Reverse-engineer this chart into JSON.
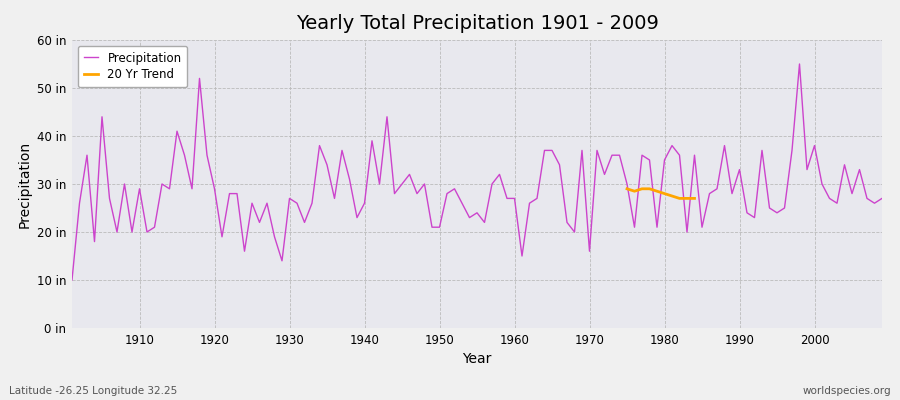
{
  "title": "Yearly Total Precipitation 1901 - 2009",
  "xlabel": "Year",
  "ylabel": "Precipitation",
  "bg_color": "#f0f0f0",
  "plot_bg_color": "#e8e8ee",
  "line_color": "#cc44cc",
  "trend_color": "#ffa500",
  "ylim": [
    0,
    60
  ],
  "ytick_labels": [
    "0 in",
    "10 in",
    "20 in",
    "30 in",
    "40 in",
    "50 in",
    "60 in"
  ],
  "ytick_values": [
    0,
    10,
    20,
    30,
    40,
    50,
    60
  ],
  "footer_left": "Latitude -26.25 Longitude 32.25",
  "footer_right": "worldspecies.org",
  "years": [
    1901,
    1902,
    1903,
    1904,
    1905,
    1906,
    1907,
    1908,
    1909,
    1910,
    1911,
    1912,
    1913,
    1914,
    1915,
    1916,
    1917,
    1918,
    1919,
    1920,
    1921,
    1922,
    1923,
    1924,
    1925,
    1926,
    1927,
    1928,
    1929,
    1930,
    1931,
    1932,
    1933,
    1934,
    1935,
    1936,
    1937,
    1938,
    1939,
    1940,
    1941,
    1942,
    1943,
    1944,
    1945,
    1946,
    1947,
    1948,
    1949,
    1950,
    1951,
    1952,
    1953,
    1954,
    1955,
    1956,
    1957,
    1958,
    1959,
    1960,
    1961,
    1962,
    1963,
    1964,
    1965,
    1966,
    1967,
    1968,
    1969,
    1970,
    1971,
    1972,
    1973,
    1974,
    1975,
    1976,
    1977,
    1978,
    1979,
    1980,
    1981,
    1982,
    1983,
    1984,
    1985,
    1986,
    1987,
    1988,
    1989,
    1990,
    1991,
    1992,
    1993,
    1994,
    1995,
    1996,
    1997,
    1998,
    1999,
    2000,
    2001,
    2002,
    2003,
    2004,
    2005,
    2006,
    2007,
    2008,
    2009
  ],
  "precip": [
    10,
    26,
    36,
    18,
    44,
    27,
    20,
    30,
    20,
    29,
    20,
    21,
    30,
    29,
    41,
    36,
    29,
    52,
    36,
    29,
    19,
    28,
    28,
    16,
    26,
    22,
    26,
    19,
    14,
    27,
    26,
    22,
    26,
    38,
    34,
    27,
    37,
    31,
    23,
    26,
    39,
    30,
    44,
    28,
    30,
    32,
    28,
    30,
    21,
    21,
    28,
    29,
    26,
    23,
    24,
    22,
    30,
    32,
    27,
    27,
    15,
    26,
    27,
    37,
    37,
    34,
    22,
    20,
    37,
    16,
    37,
    32,
    36,
    36,
    30,
    21,
    36,
    35,
    21,
    35,
    38,
    36,
    20,
    36,
    21,
    28,
    29,
    38,
    28,
    33,
    24,
    23,
    37,
    25,
    24,
    25,
    37,
    55,
    33,
    38,
    30,
    27,
    26,
    34,
    28,
    33,
    27,
    26,
    27
  ],
  "trend_years": [
    1975,
    1976,
    1977,
    1978,
    1979,
    1980,
    1981,
    1982,
    1983,
    1984
  ],
  "trend_values": [
    29,
    28.5,
    29,
    29,
    28.5,
    28,
    27.5,
    27,
    27,
    27
  ]
}
